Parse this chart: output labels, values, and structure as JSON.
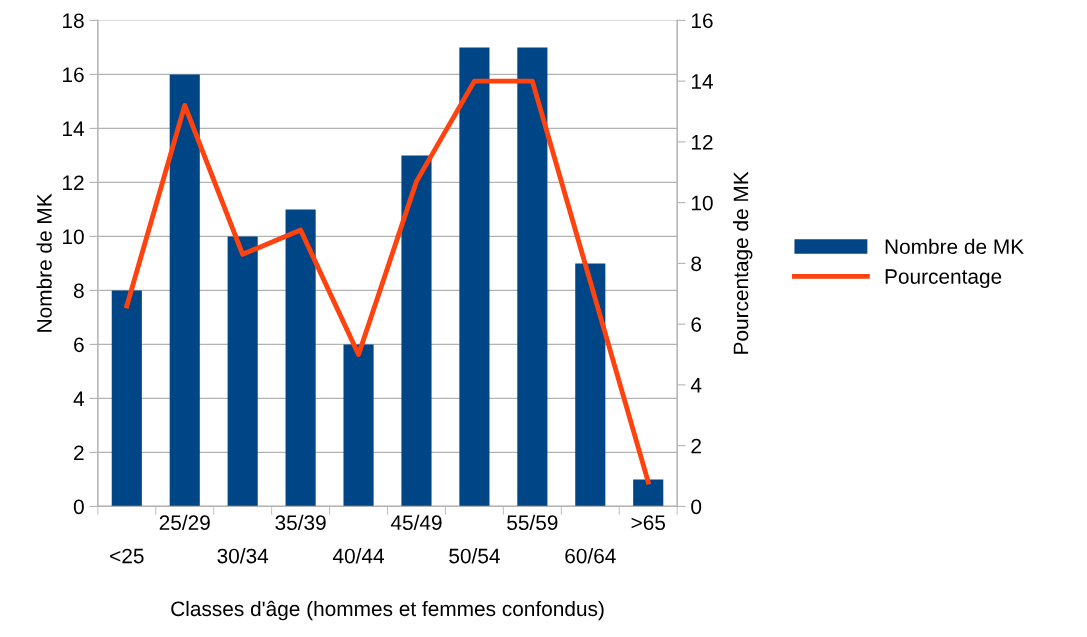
{
  "chart_data": {
    "type": "bar",
    "xlabel": "Classes d'âge (hommes et femmes confondus)",
    "ylabel": "Nombre de MK",
    "y2label": "Pourcentage de MK",
    "categories": [
      "<25",
      "25/29",
      "30/34",
      "35/39",
      "40/44",
      "45/49",
      "50/54",
      "55/59",
      "60/64",
      ">65"
    ],
    "series": [
      {
        "name": "Nombre de MK",
        "color": "#004586",
        "values": [
          8,
          16,
          10,
          11,
          6,
          13,
          17,
          17,
          9,
          1
        ]
      },
      {
        "name": "Pourcentage",
        "type": "line",
        "axis": "y2",
        "color": "#ff420e",
        "values": [
          6.6,
          13.2,
          8.3,
          9.1,
          5.0,
          10.7,
          14.0,
          14.0,
          7.4,
          0.8
        ]
      }
    ],
    "ylim": [
      0,
      18
    ],
    "yticks": [
      0,
      2,
      4,
      6,
      8,
      10,
      12,
      14,
      16,
      18
    ],
    "y2lim": [
      0,
      16
    ],
    "y2ticks": [
      0,
      2,
      4,
      6,
      8,
      10,
      12,
      14,
      16
    ],
    "grid": "y",
    "legend": "right",
    "marker": "none",
    "line_style": "solid"
  }
}
